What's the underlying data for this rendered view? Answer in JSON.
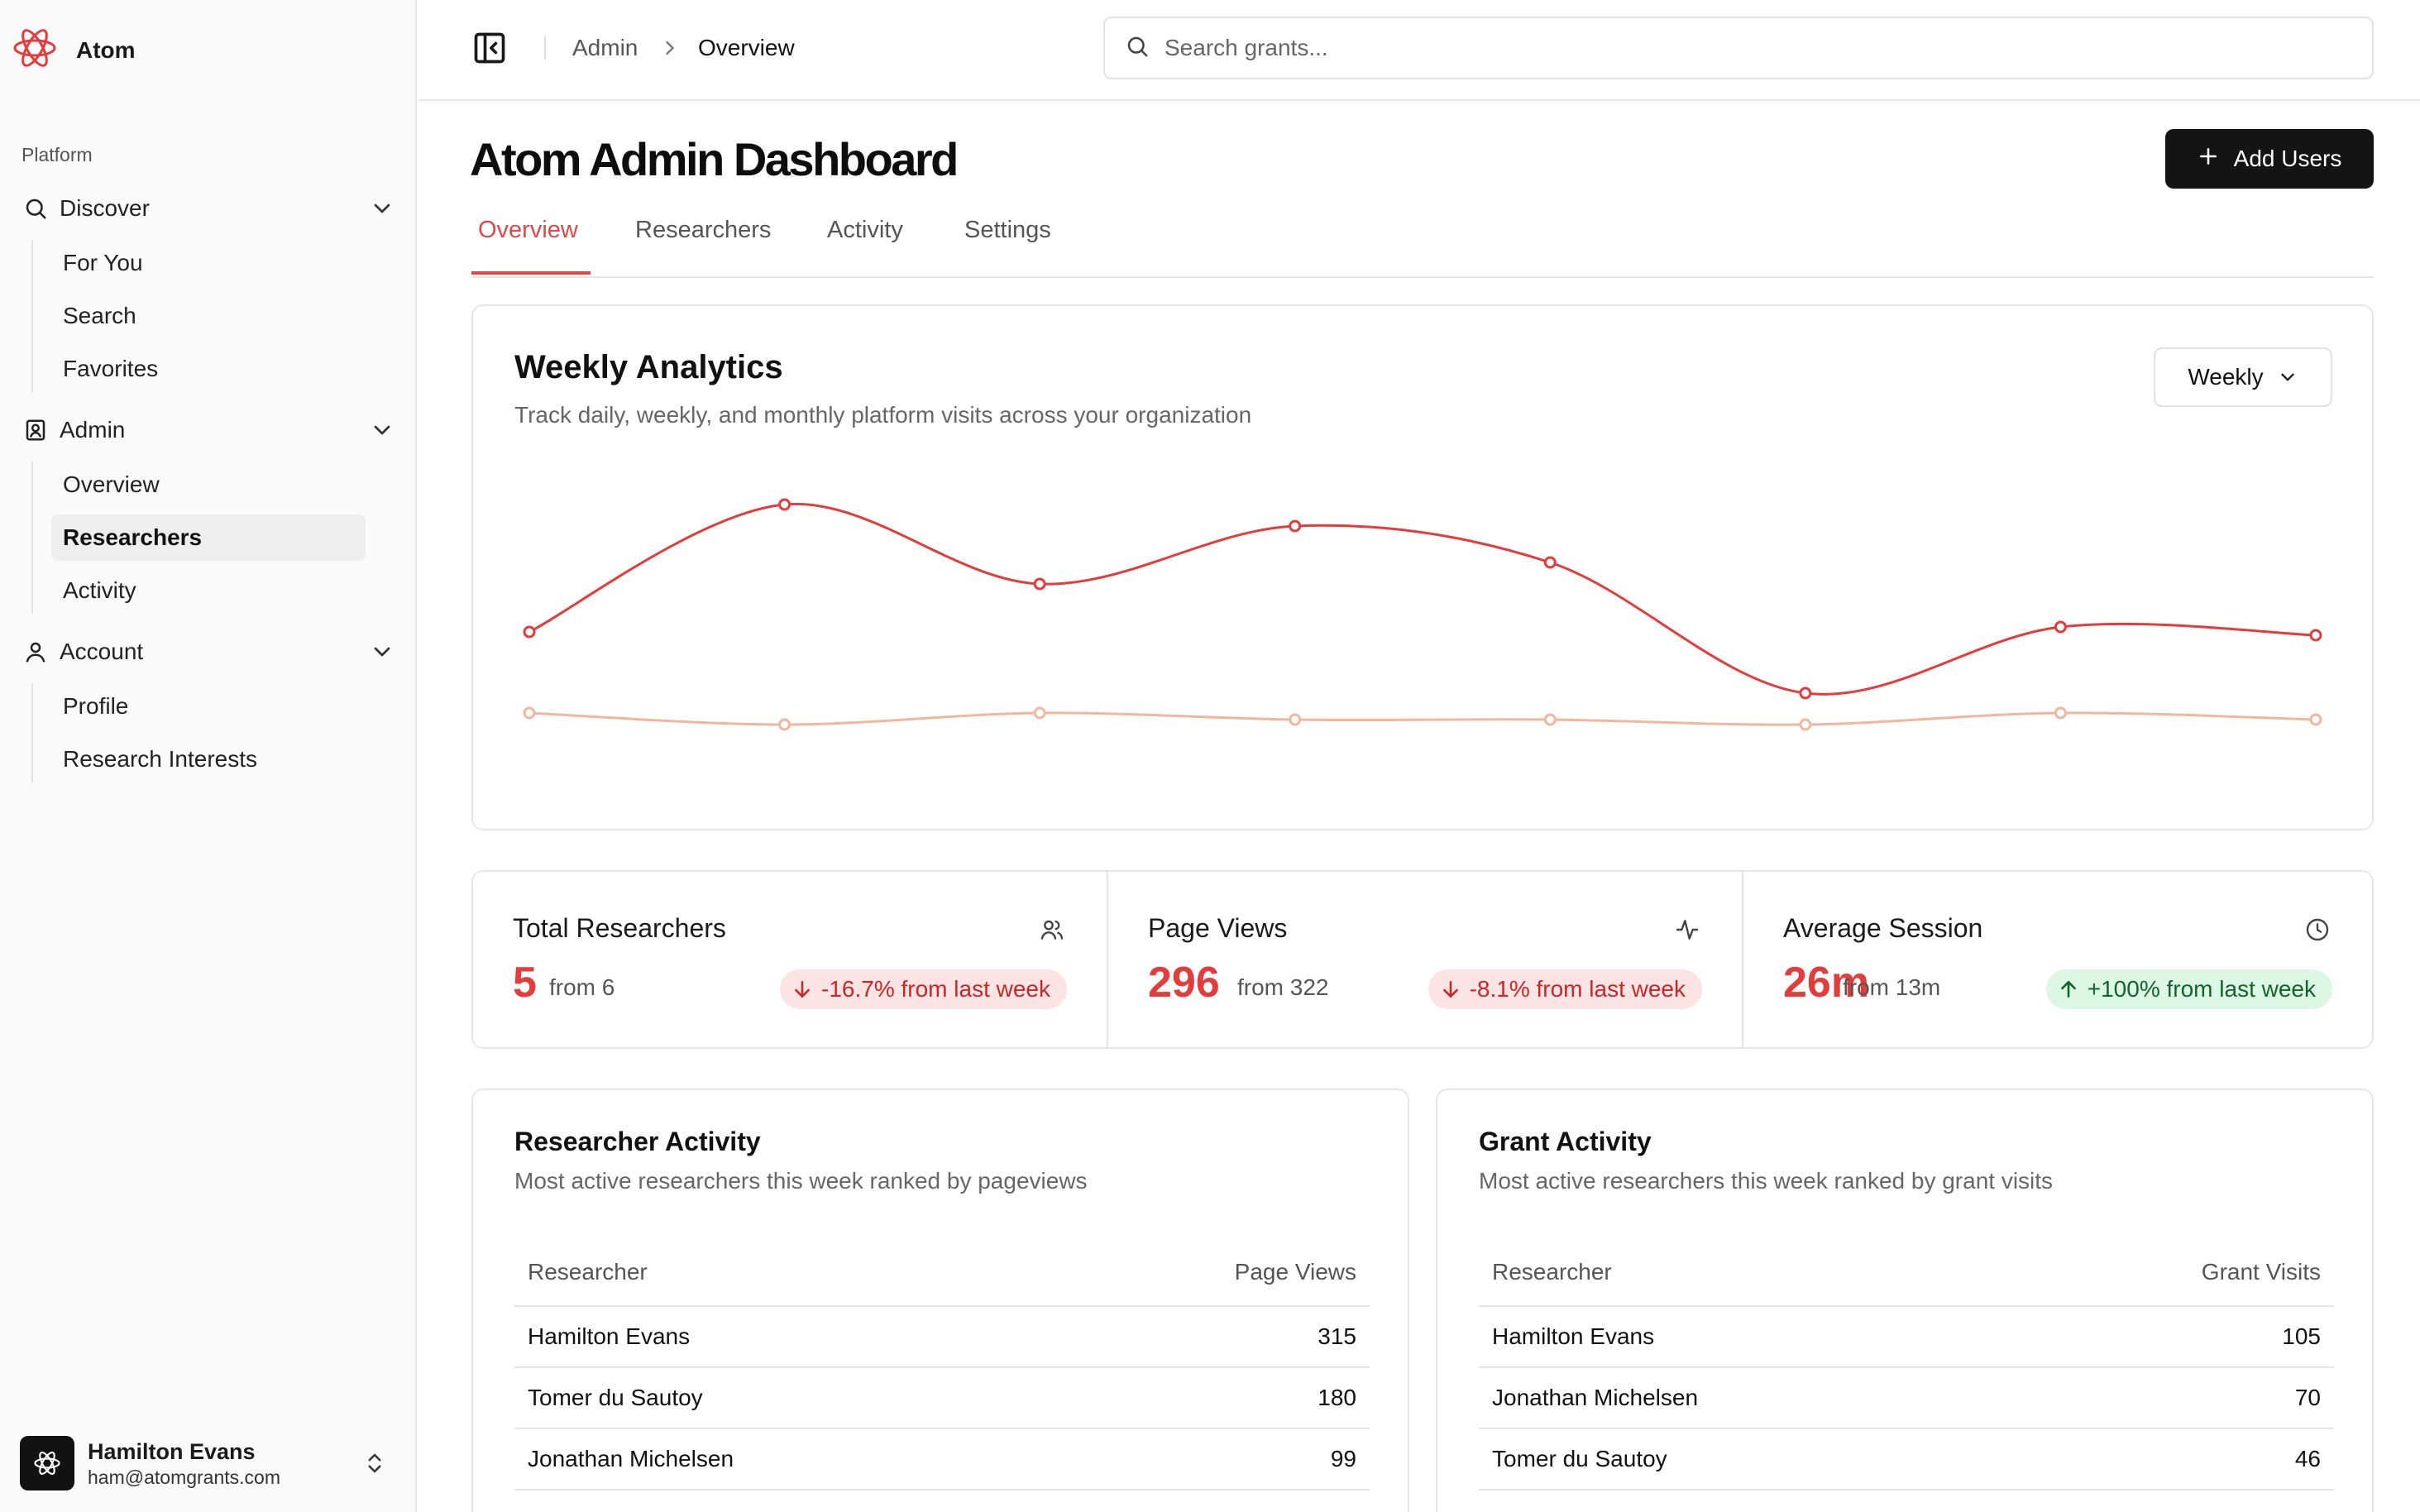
{
  "app": {
    "name": "Atom"
  },
  "sidebar": {
    "section_label": "Platform",
    "groups": [
      {
        "label": "Discover",
        "icon": "search-icon",
        "items": [
          "For You",
          "Search",
          "Favorites"
        ]
      },
      {
        "label": "Admin",
        "icon": "contact-book-icon",
        "items": [
          "Overview",
          "Researchers",
          "Activity"
        ],
        "active_item": "Researchers"
      },
      {
        "label": "Account",
        "icon": "user-icon",
        "items": [
          "Profile",
          "Research Interests"
        ]
      }
    ],
    "user": {
      "name": "Hamilton Evans",
      "email": "ham@atomgrants.com"
    }
  },
  "header": {
    "breadcrumb": [
      "Admin",
      "Overview"
    ],
    "search_placeholder": "Search grants..."
  },
  "page": {
    "title": "Atom Admin Dashboard",
    "add_button": "Add Users",
    "tabs": [
      "Overview",
      "Researchers",
      "Activity",
      "Settings"
    ],
    "active_tab": "Overview"
  },
  "analytics": {
    "title": "Weekly Analytics",
    "subtitle": "Track daily, weekly, and monthly platform visits across your organization",
    "range": "Weekly"
  },
  "chart_data": {
    "type": "line",
    "x": [
      1,
      2,
      3,
      4,
      5,
      6,
      7,
      8
    ],
    "series": [
      {
        "color": "#e23c3c",
        "values": [
          245,
          322,
          274,
          309,
          287,
          208,
          248,
          243
        ]
      },
      {
        "color": "#f1b79e",
        "values": [
          196,
          189,
          196,
          192,
          192,
          189,
          196,
          192
        ]
      }
    ],
    "ylim": [
      150,
      350
    ],
    "grid": false,
    "legend": "none"
  },
  "stats": [
    {
      "label": "Total Researchers",
      "icon": "users-icon",
      "value": "5",
      "from": "from 6",
      "change": "-16.7% from last week",
      "direction": "down"
    },
    {
      "label": "Page Views",
      "icon": "activity-icon",
      "value": "296",
      "from": "from 322",
      "change": "-8.1% from last week",
      "direction": "down"
    },
    {
      "label": "Average Session",
      "icon": "clock-icon",
      "value": "26m",
      "from": "from 13m",
      "change": "+100% from last week",
      "direction": "up"
    }
  ],
  "researcher_activity": {
    "title": "Researcher Activity",
    "subtitle": "Most active researchers this week ranked by pageviews",
    "columns": [
      "Researcher",
      "Page Views"
    ],
    "rows": [
      [
        "Hamilton Evans",
        "315"
      ],
      [
        "Tomer du Sautoy",
        "180"
      ],
      [
        "Jonathan Michelsen",
        "99"
      ]
    ]
  },
  "grant_activity": {
    "title": "Grant Activity",
    "subtitle": "Most active researchers this week ranked by grant visits",
    "columns": [
      "Researcher",
      "Grant Visits"
    ],
    "rows": [
      [
        "Hamilton Evans",
        "105"
      ],
      [
        "Jonathan Michelsen",
        "70"
      ],
      [
        "Tomer du Sautoy",
        "46"
      ]
    ]
  }
}
